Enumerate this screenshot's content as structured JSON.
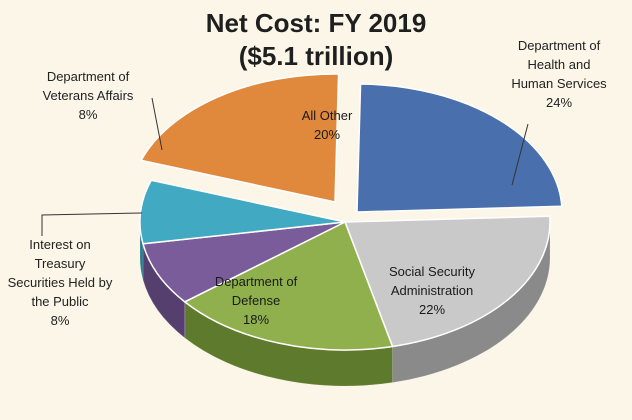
{
  "chart_data": {
    "type": "pie",
    "title": "Net Cost: FY 2019",
    "subtitle": "($5.1 trillion)",
    "slices": [
      {
        "label": [
          "All Other"
        ],
        "value": 20,
        "display": "20%",
        "color": "#e0893c",
        "side": "#b4682a",
        "label_pos": "inside"
      },
      {
        "label": [
          "Department of",
          "Health and",
          "Human Services"
        ],
        "value": 24,
        "display": "24%",
        "color": "#4a6fad",
        "side": "#2f4c82",
        "label_pos": "outside"
      },
      {
        "label": [
          "Social Security",
          "Administration"
        ],
        "value": 22,
        "display": "22%",
        "color": "#c9c9c9",
        "side": "#8a8a8a",
        "label_pos": "inside"
      },
      {
        "label": [
          "Department of",
          "Defense"
        ],
        "value": 18,
        "display": "18%",
        "color": "#8fb04c",
        "side": "#5e7a2c",
        "label_pos": "inside"
      },
      {
        "label": [
          "Interest on",
          "Treasury",
          "Securities Held by",
          "the Public"
        ],
        "value": 8,
        "display": "8%",
        "color": "#7a5c9a",
        "side": "#553f6f",
        "label_pos": "outside"
      },
      {
        "label": [
          "Department of",
          "Veterans Affairs"
        ],
        "value": 8,
        "display": "8%",
        "color": "#41a9c2",
        "side": "#2b7a8e",
        "label_pos": "outside"
      }
    ],
    "legend": "none"
  }
}
